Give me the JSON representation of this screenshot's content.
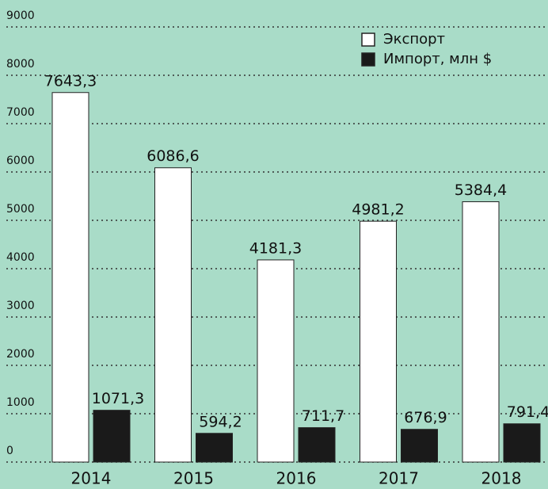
{
  "chart_data": {
    "type": "bar",
    "categories": [
      "2014",
      "2015",
      "2016",
      "2017",
      "2018"
    ],
    "series": [
      {
        "name": "Экспорт",
        "color": "#ffffff",
        "values": [
          7643.3,
          6086.6,
          4181.3,
          4981.2,
          5384.4
        ],
        "value_labels": [
          "7643,3",
          "6086,6",
          "4181,3",
          "4981,2",
          "5384,4"
        ]
      },
      {
        "name": "Импорт, млн $",
        "color": "#1a1a1a",
        "values": [
          1071.3,
          594.2,
          711.7,
          676.9,
          791.4
        ],
        "value_labels": [
          "1071,3",
          "594,2",
          "711,7",
          "676,9",
          "791,4"
        ]
      }
    ],
    "ylim": [
      0,
      9000
    ],
    "yticks": [
      0,
      1000,
      2000,
      3000,
      4000,
      5000,
      6000,
      7000,
      8000,
      9000
    ],
    "grid": true,
    "legend": "upper right"
  }
}
